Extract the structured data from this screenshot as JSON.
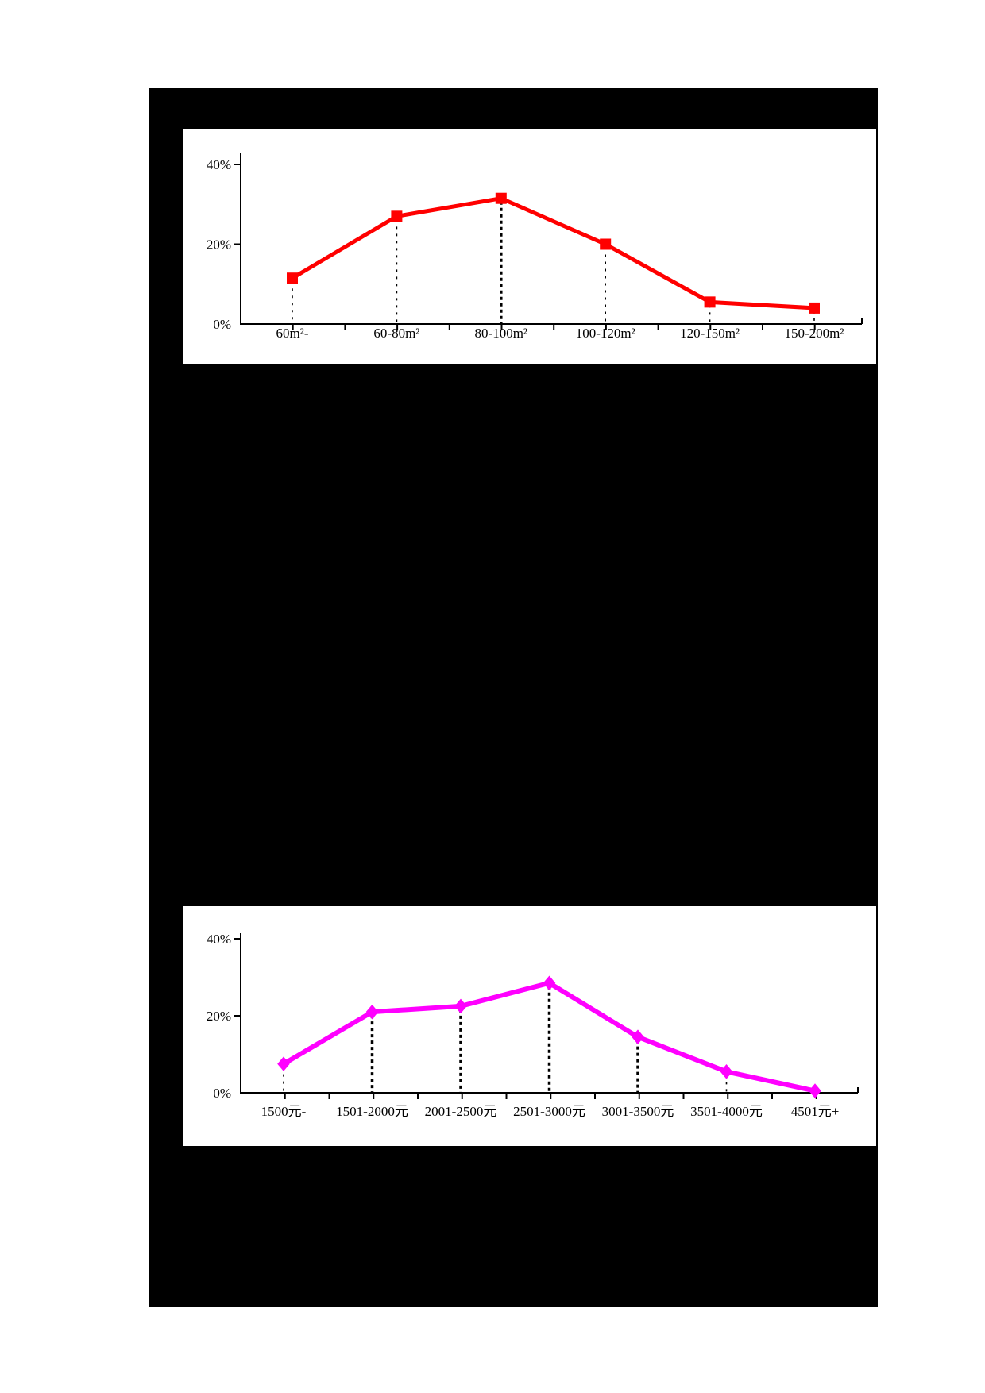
{
  "page": {
    "background_color": "#ffffff",
    "content_area_color": "#000000",
    "panel_color": "#ffffff",
    "axis_color": "#000000"
  },
  "chart_data": [
    {
      "type": "line",
      "title": "",
      "xlabel": "",
      "ylabel": "",
      "categories": [
        "60m²-",
        "60-80m²",
        "80-100m²",
        "100-120m²",
        "120-150m²",
        "150-200m²"
      ],
      "values": [
        11.5,
        27,
        31.5,
        20,
        5.5,
        4
      ],
      "ytick_labels": [
        "0%",
        "20%",
        "40%"
      ],
      "ytick_values": [
        0,
        20,
        40
      ],
      "ylim": [
        0,
        43
      ],
      "grid": false,
      "legend": "none",
      "line_color": "#ff0000",
      "marker": "square",
      "marker_color": "#ff0000",
      "droplines": true,
      "dropline_styles": [
        "thin",
        "thin",
        "bold",
        "thin",
        "thin",
        "thin"
      ]
    },
    {
      "type": "line",
      "title": "",
      "xlabel": "",
      "ylabel": "",
      "categories": [
        "1500元-",
        "1501-2000元",
        "2001-2500元",
        "2501-3000元",
        "3001-3500元",
        "3501-4000元",
        "4501元+"
      ],
      "values": [
        7.5,
        21,
        22.5,
        28.5,
        14.5,
        5.5,
        0.5
      ],
      "ytick_labels": [
        "0%",
        "20%",
        "40%"
      ],
      "ytick_values": [
        0,
        20,
        40
      ],
      "ylim": [
        0,
        43
      ],
      "grid": false,
      "legend": "none",
      "line_color": "#ff00ff",
      "marker": "diamond",
      "marker_color": "#ff00ff",
      "droplines": true,
      "dropline_styles": [
        "thin",
        "bold",
        "bold",
        "bold",
        "bold",
        "thin",
        "thin"
      ]
    }
  ]
}
